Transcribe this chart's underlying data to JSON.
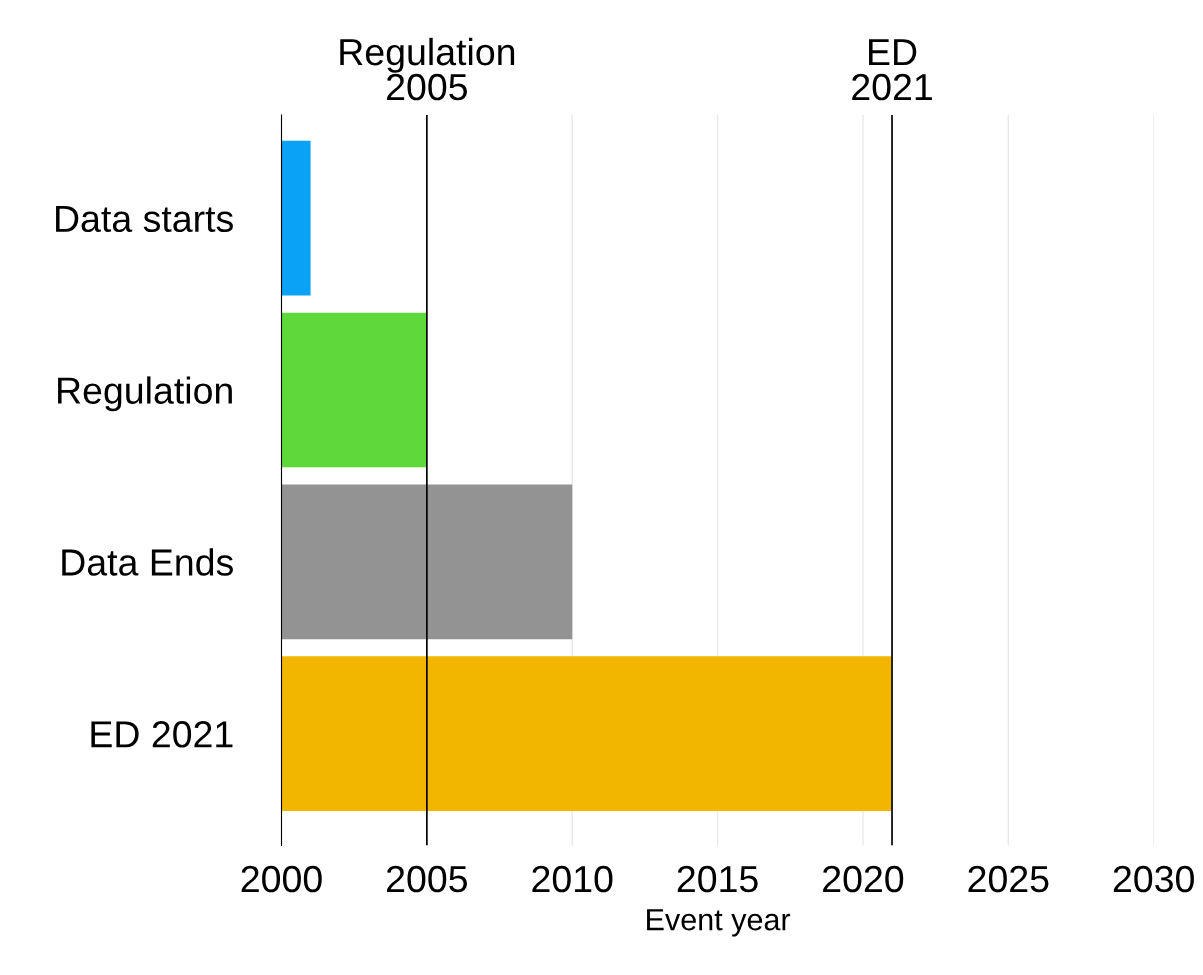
{
  "chart_data": {
    "type": "bar",
    "orientation": "horizontal",
    "categories": [
      "Data starts",
      "Regulation",
      "Data Ends",
      "ED 2021"
    ],
    "values": [
      2001,
      2005,
      2010,
      2021
    ],
    "colors": [
      "#0aa2f5",
      "#5fd83a",
      "#939393",
      "#f2b600"
    ],
    "xlim": [
      2000,
      2030
    ],
    "xticks": [
      2000,
      2005,
      2010,
      2015,
      2020,
      2025,
      2030
    ],
    "xlabel": "Event year",
    "grid": "x",
    "ref_lines": [
      {
        "axis": "x",
        "value": 2005,
        "label": "Regulation\n2005",
        "color": "#000000"
      },
      {
        "axis": "x",
        "value": 2021,
        "label": "ED\n2021",
        "color": "#000000"
      }
    ]
  }
}
